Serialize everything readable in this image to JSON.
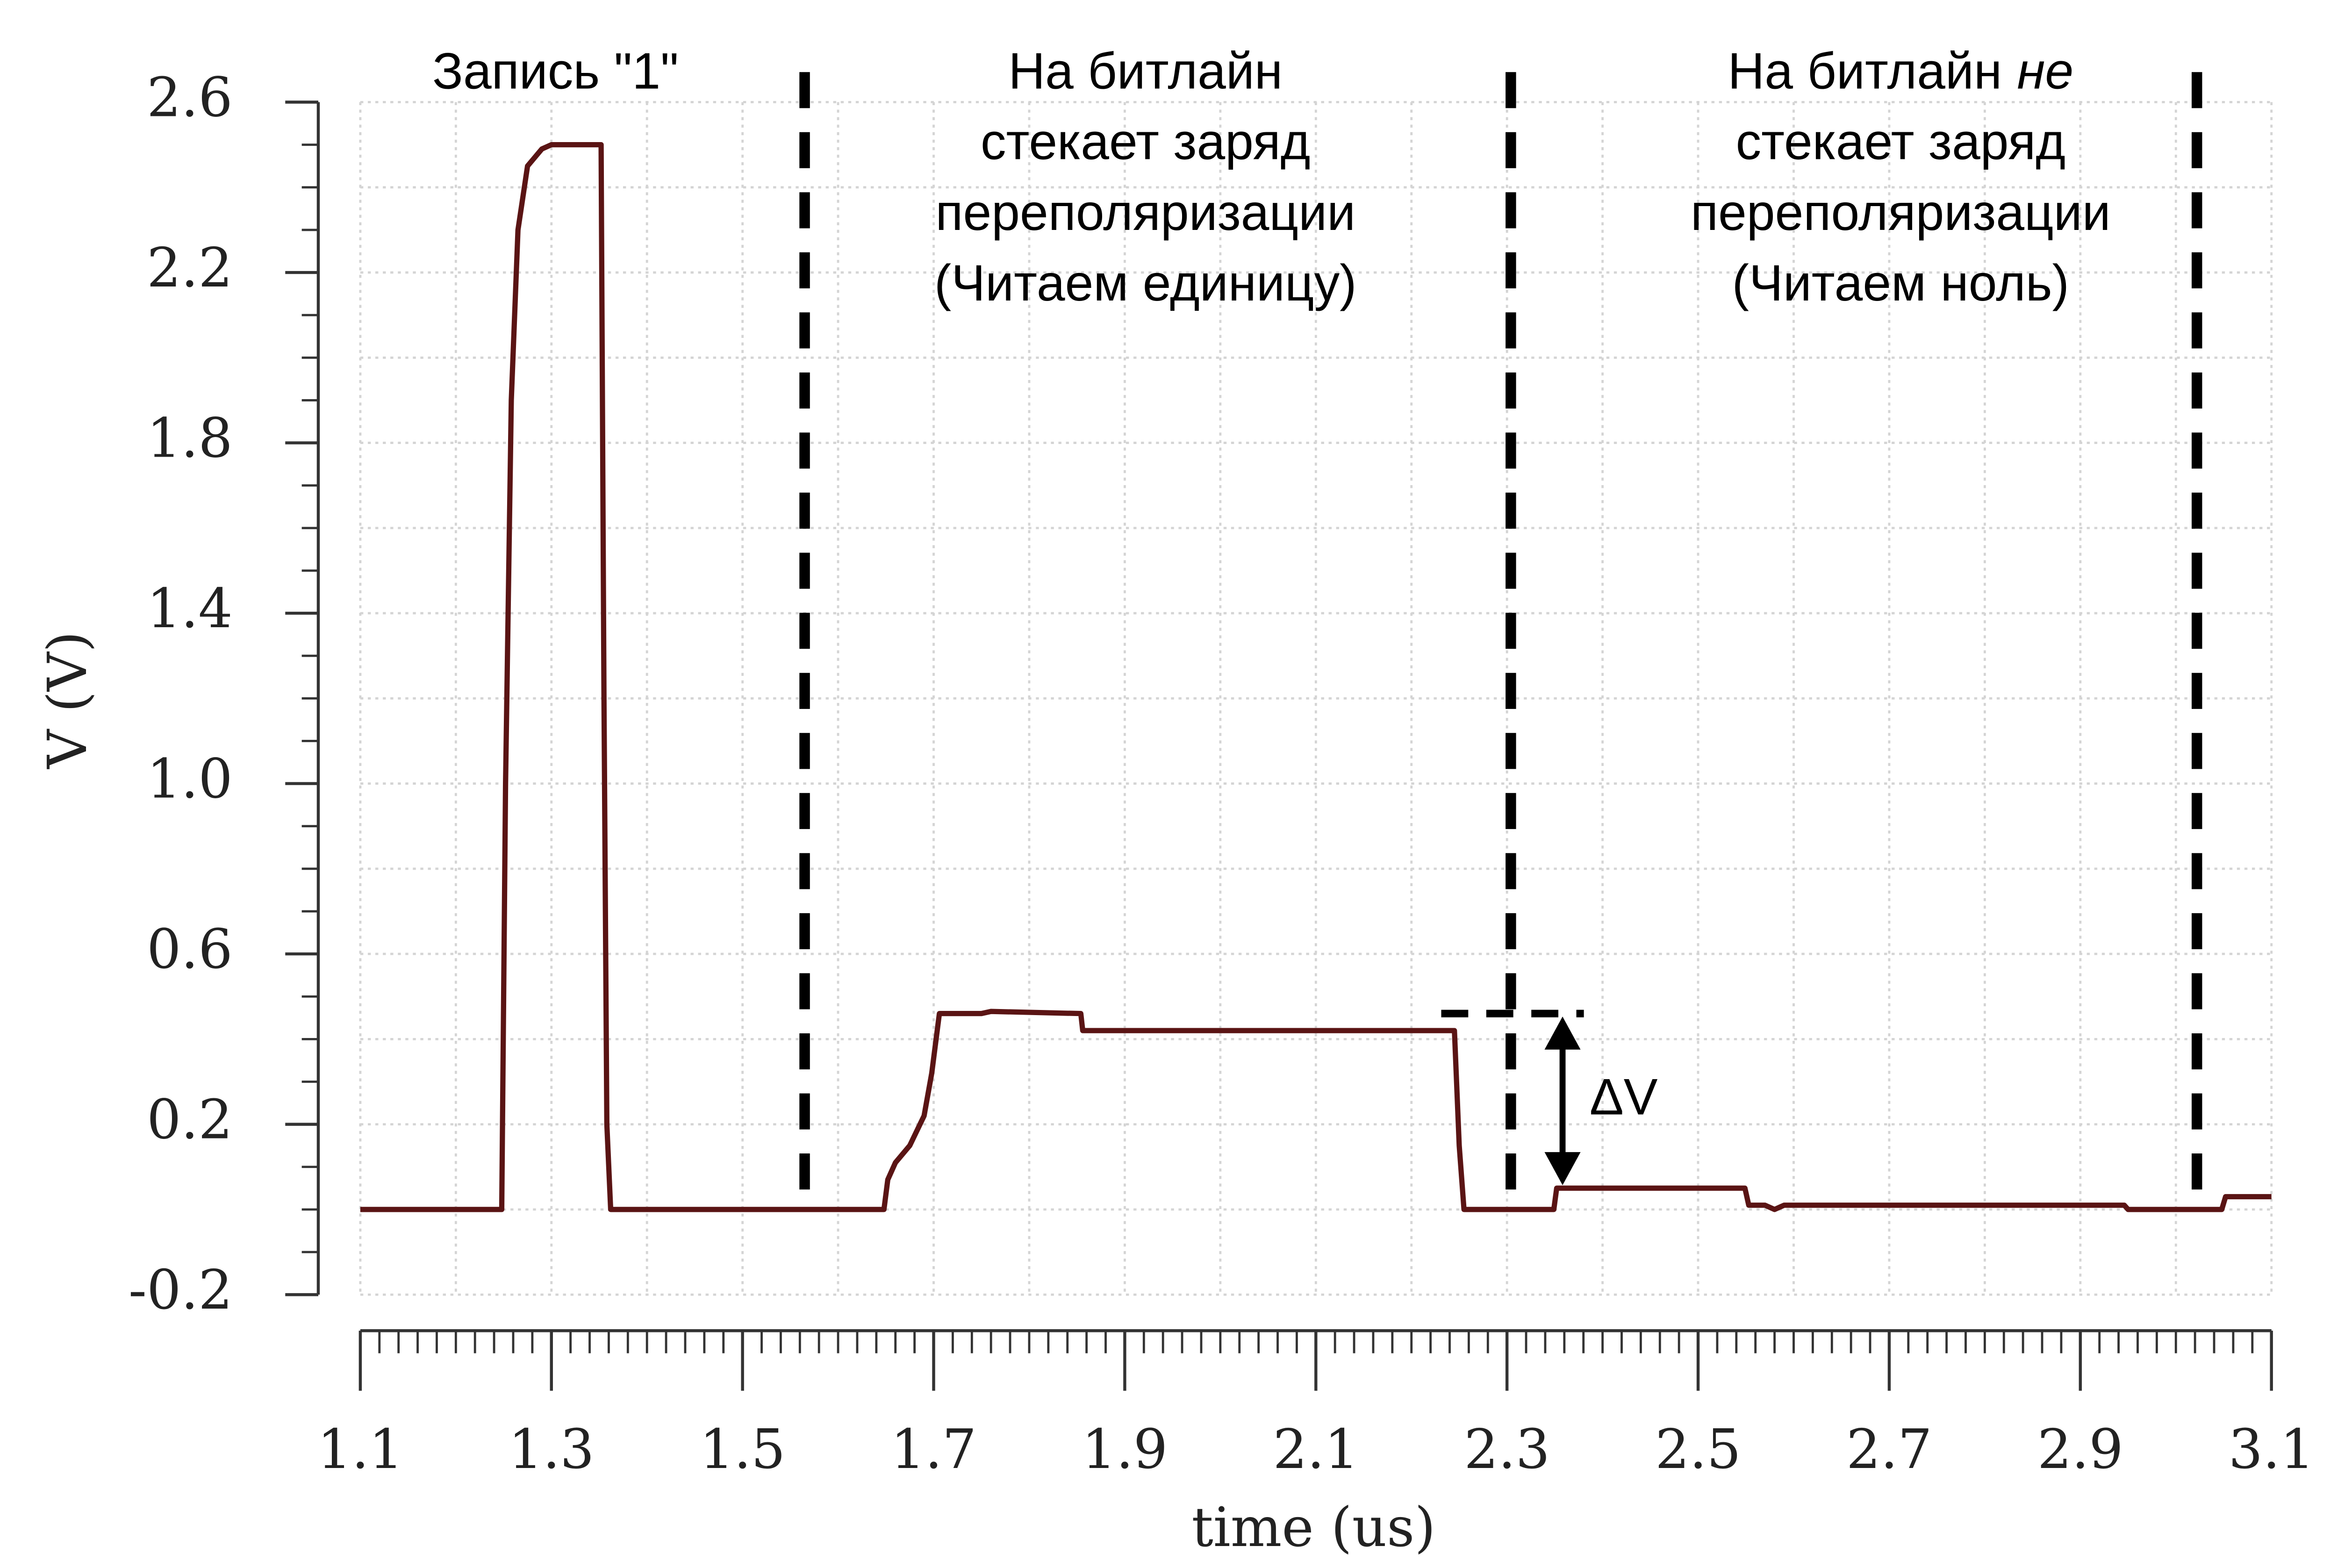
{
  "chart_data": {
    "type": "line",
    "xlabel": "time (us)",
    "ylabel": "V (V)",
    "color": "#5a1414",
    "x": [
      1.1,
      1.248,
      1.252,
      1.258,
      1.265,
      1.275,
      1.29,
      1.3,
      1.352,
      1.355,
      1.358,
      1.362,
      1.648,
      1.652,
      1.66,
      1.675,
      1.69,
      1.698,
      1.706,
      1.75,
      1.76,
      1.854,
      1.856,
      2.245,
      2.25,
      2.255,
      2.349,
      2.352,
      2.549,
      2.553,
      2.57,
      2.58,
      2.59,
      2.6,
      2.946,
      2.95,
      3.048,
      3.052,
      3.1
    ],
    "values": [
      0,
      0,
      1.0,
      1.9,
      2.3,
      2.45,
      2.49,
      2.5,
      2.5,
      1.2,
      0.2,
      0,
      0,
      0.07,
      0.11,
      0.15,
      0.22,
      0.32,
      0.46,
      0.46,
      0.465,
      0.46,
      0.42,
      0.42,
      0.15,
      0,
      0,
      0.05,
      0.05,
      0.01,
      0.01,
      0,
      0.01,
      0.01,
      0.01,
      0,
      0,
      0.03,
      0.03
    ],
    "xlim": [
      1.1,
      3.1
    ],
    "ylim": [
      -0.2,
      2.6
    ],
    "xticks": [
      1.1,
      1.3,
      1.5,
      1.7,
      1.9,
      2.1,
      2.3,
      2.5,
      2.7,
      2.9,
      3.1
    ],
    "yticks": [
      -0.2,
      0.2,
      0.6,
      {
        "value": 1,
        "label": "1.0"
      },
      1.4,
      1.8,
      2.2,
      2.6
    ],
    "minor_ticks": {
      "x": 0.02,
      "y": 0.1
    },
    "grid": {
      "x": 0.1,
      "y": 0.2
    },
    "markers": [
      1.565,
      2.304,
      3.022
    ],
    "delta": {
      "label": "ΔV",
      "from": 0.46,
      "to": 0.05,
      "x": 2.355
    },
    "annotations": [
      {
        "lines": [
          "Запись \"1\""
        ]
      },
      {
        "lines": [
          "На битлайн",
          "стекает заряд",
          "переполяризации",
          "(Читаем единицу)"
        ]
      },
      {
        "lines": [
          "На битлайн",
          "стекает заряд",
          "переполяризации",
          "(Читаем ноль)"
        ],
        "italic": "не"
      }
    ]
  }
}
